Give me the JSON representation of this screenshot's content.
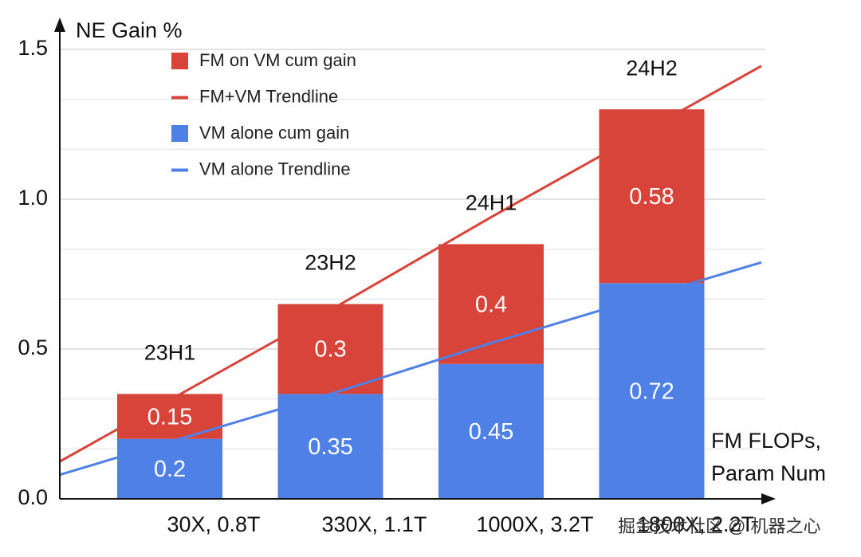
{
  "chart_data": {
    "type": "bar",
    "y_label": "NE Gain %",
    "x_label": [
      "FM FLOPs,",
      "Param Num"
    ],
    "categories": [
      "30X, 0.8T",
      "330X, 1.1T",
      "1000X, 3.2T",
      "1800X, 2.2T"
    ],
    "annotations": [
      "23H1",
      "23H2",
      "24H1",
      "24H2"
    ],
    "series": [
      {
        "name": "FM on VM cum gain",
        "type": "bar",
        "color": "#d8433a",
        "values": [
          0.15,
          0.3,
          0.4,
          0.58
        ]
      },
      {
        "name": "FM+VM Trendline",
        "type": "line",
        "color": "#d8433a",
        "values": [
          0.33,
          0.63,
          0.94,
          1.24
        ]
      },
      {
        "name": "VM alone cum gain",
        "type": "bar",
        "color": "#4f80e6",
        "values": [
          0.2,
          0.35,
          0.45,
          0.72
        ]
      },
      {
        "name": "VM alone Trendline",
        "type": "line",
        "color": "#4f80e6",
        "values": [
          0.19,
          0.35,
          0.52,
          0.68
        ]
      }
    ],
    "ylim": [
      0,
      1.5
    ],
    "yticks": [
      {
        "value": 0,
        "label": "0.0"
      },
      0.5,
      {
        "value": 1,
        "label": "1.0"
      },
      1.5
    ],
    "grid": true,
    "minor_grid_divisions": 3,
    "legend": "top-left",
    "watermark": "掘金技术社区 @ 机器之心"
  }
}
